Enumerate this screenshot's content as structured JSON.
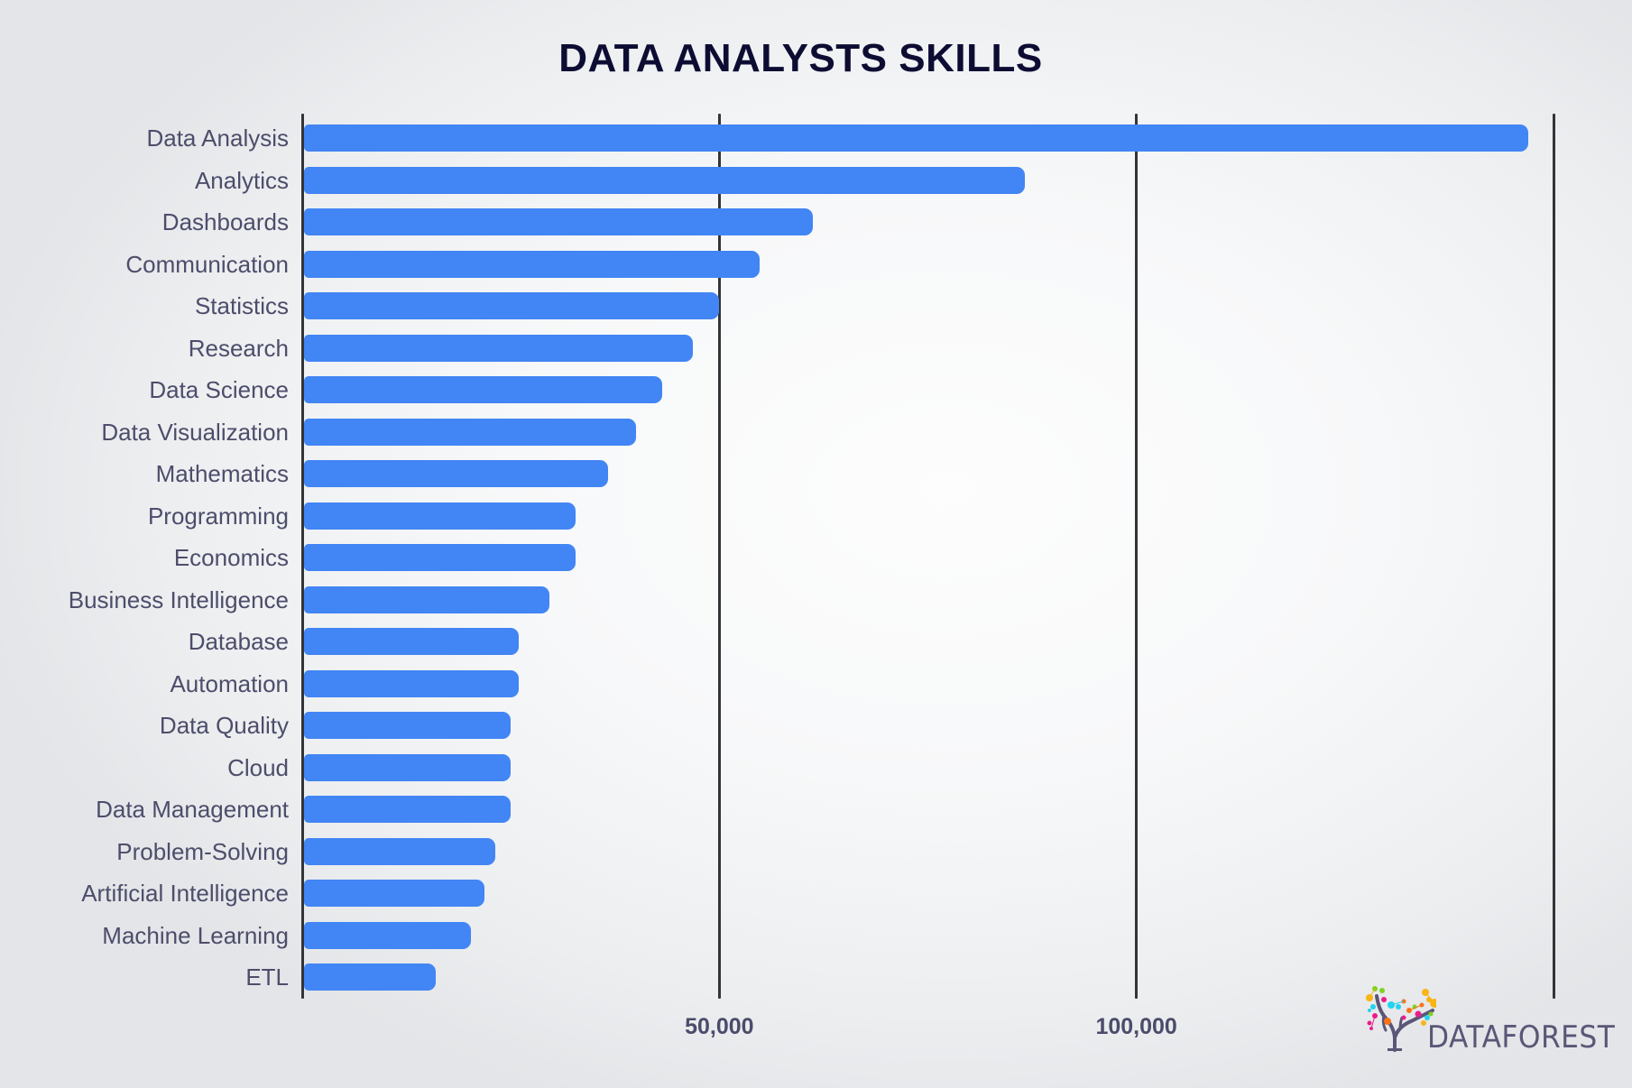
{
  "title": "DATA ANALYSTS SKILLS",
  "colors": {
    "bar": "#4285f4",
    "title": "#0d0d33",
    "label": "#4d4d6b",
    "gridline": "#333339"
  },
  "axis": {
    "min": 0,
    "max": 150000,
    "ticks": [
      {
        "value": 0,
        "label": ""
      },
      {
        "value": 50000,
        "label": "50,000"
      },
      {
        "value": 100000,
        "label": "100,000"
      },
      {
        "value": 150000,
        "label": ""
      }
    ]
  },
  "brand": {
    "name": "DATAFOREST",
    "icon": "tree-network-icon"
  },
  "chart_data": {
    "type": "bar",
    "orientation": "horizontal",
    "title": "DATA ANALYSTS SKILLS",
    "xlabel": "",
    "ylabel": "",
    "xlim": [
      0,
      150000
    ],
    "xticks": [
      50000,
      100000
    ],
    "grid": true,
    "legend": null,
    "categories": [
      "Data Analysis",
      "Analytics",
      "Dashboards",
      "Communication",
      "Statistics",
      "Research",
      "Data Science",
      "Data Visualization",
      "Mathematics",
      "Programming",
      "Economics",
      "Business Intelligence",
      "Database",
      "Automation",
      "Data Quality",
      "Cloud",
      "Data Management",
      "Problem-Solving",
      "Artificial Intelligence",
      "Machine Learning",
      "ETL"
    ],
    "values": [
      147000,
      86600,
      61200,
      54800,
      50000,
      46800,
      43200,
      40000,
      36700,
      32800,
      32800,
      29600,
      26000,
      26000,
      25000,
      25000,
      25000,
      23100,
      21800,
      20200,
      16000
    ]
  }
}
